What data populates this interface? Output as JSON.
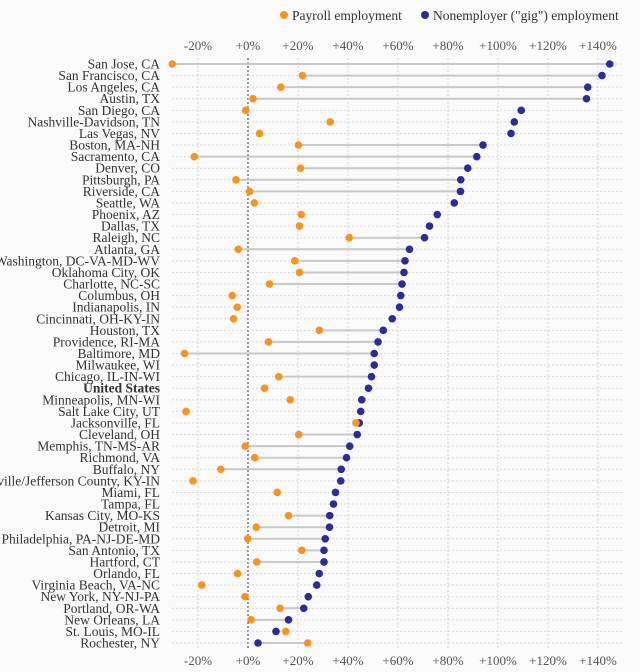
{
  "chart_data": {
    "type": "dot",
    "title": "",
    "xlabel": "",
    "ylabel": "",
    "xlim": [
      -30,
      150
    ],
    "x_ticks": [
      -20,
      0,
      20,
      40,
      60,
      80,
      100,
      120,
      140
    ],
    "x_tick_labels": [
      "-20%",
      "+0%",
      "+20%",
      "+40%",
      "+60%",
      "+80%",
      "+100%",
      "+120%",
      "+140%"
    ],
    "grid": true,
    "legend_position": "top-right",
    "series": [
      {
        "name": "Payroll employment",
        "color": "#f7931e"
      },
      {
        "name": "Nonemployer (\"gig\") employment",
        "color": "#2b2b9a"
      }
    ],
    "rows": [
      {
        "label": "San Jose, CA",
        "payroll": -30.3,
        "gig": 144.7,
        "connector": true
      },
      {
        "label": "San Francisco, CA",
        "payroll": 21.8,
        "gig": 141.6,
        "connector": true
      },
      {
        "label": "Los Angeles, CA",
        "payroll": 13.1,
        "gig": 135.9,
        "connector": true
      },
      {
        "label": "Austin, TX",
        "payroll": 2.0,
        "gig": 135.4,
        "connector": true
      },
      {
        "label": "San Diego, CA",
        "payroll": -0.9,
        "gig": 109.3,
        "connector": false
      },
      {
        "label": "Nashville-Davidson, TN",
        "payroll": 32.9,
        "gig": 106.5,
        "connector": false
      },
      {
        "label": "Las Vegas, NV",
        "payroll": 4.6,
        "gig": 105.2,
        "connector": false
      },
      {
        "label": "Boston, MA-NH",
        "payroll": 20.2,
        "gig": 94.0,
        "connector": true
      },
      {
        "label": "Sacramento, CA",
        "payroll": -21.5,
        "gig": 91.5,
        "connector": true
      },
      {
        "label": "Denver, CO",
        "payroll": 21.0,
        "gig": 87.9,
        "connector": true
      },
      {
        "label": "Pittsburgh, PA",
        "payroll": -4.8,
        "gig": 85.1,
        "connector": true
      },
      {
        "label": "Riverside, CA",
        "payroll": 0.6,
        "gig": 85.0,
        "connector": true
      },
      {
        "label": "Seattle, WA",
        "payroll": 2.5,
        "gig": 82.5,
        "connector": false
      },
      {
        "label": "Phoenix, AZ",
        "payroll": 21.3,
        "gig": 75.7,
        "connector": false
      },
      {
        "label": "Dallas, TX",
        "payroll": 20.6,
        "gig": 72.6,
        "connector": false
      },
      {
        "label": "Raleigh, NC",
        "payroll": 40.5,
        "gig": 70.6,
        "connector": true
      },
      {
        "label": "Atlanta, GA",
        "payroll": -3.9,
        "gig": 64.6,
        "connector": true
      },
      {
        "label": "Washington, DC-VA-MD-WV",
        "payroll": 18.7,
        "gig": 62.8,
        "connector": true
      },
      {
        "label": "Oklahoma City, OK",
        "payroll": 20.6,
        "gig": 62.4,
        "connector": true
      },
      {
        "label": "Charlotte, NC-SC",
        "payroll": 8.6,
        "gig": 61.6,
        "connector": true
      },
      {
        "label": "Columbus, OH",
        "payroll": -6.3,
        "gig": 61.1,
        "connector": false
      },
      {
        "label": "Indianapolis, IN",
        "payroll": -4.3,
        "gig": 60.6,
        "connector": false
      },
      {
        "label": "Cincinnati, OH-KY-IN",
        "payroll": -5.8,
        "gig": 57.7,
        "connector": false
      },
      {
        "label": "Houston, TX",
        "payroll": 28.5,
        "gig": 54.1,
        "connector": true
      },
      {
        "label": "Providence, RI-MA",
        "payroll": 8.2,
        "gig": 52.0,
        "connector": true
      },
      {
        "label": "Baltimore, MD",
        "payroll": -25.4,
        "gig": 50.5,
        "connector": true
      },
      {
        "label": "Milwaukee, WI",
        "payroll": null,
        "gig": 50.5,
        "connector": false
      },
      {
        "label": "Chicago, IL-IN-WI",
        "payroll": 12.3,
        "gig": 49.4,
        "connector": true
      },
      {
        "label": "United States",
        "payroll": 6.6,
        "gig": 48.2,
        "connector": false,
        "bold": true
      },
      {
        "label": "Minneapolis, MN-WI",
        "payroll": 16.9,
        "gig": 45.5,
        "connector": false
      },
      {
        "label": "Salt Lake City, UT",
        "payroll": -24.8,
        "gig": 45.1,
        "connector": false
      },
      {
        "label": "Jacksonville, FL",
        "payroll": 43.2,
        "gig": 44.5,
        "connector": false
      },
      {
        "label": "Cleveland, OH",
        "payroll": 20.3,
        "gig": 43.7,
        "connector": true
      },
      {
        "label": "Memphis, TN-MS-AR",
        "payroll": -1.1,
        "gig": 40.7,
        "connector": true
      },
      {
        "label": "Richmond, VA",
        "payroll": 2.7,
        "gig": 39.4,
        "connector": true
      },
      {
        "label": "Buffalo, NY",
        "payroll": -10.9,
        "gig": 37.3,
        "connector": true
      },
      {
        "label": "Louisville/Jefferson County, KY-IN",
        "payroll": -22.0,
        "gig": 37.1,
        "connector": false
      },
      {
        "label": "Miami, FL",
        "payroll": 11.7,
        "gig": 35.0,
        "connector": false
      },
      {
        "label": "Tampa, FL",
        "payroll": null,
        "gig": 34.2,
        "connector": false
      },
      {
        "label": "Kansas City, MO-KS",
        "payroll": 16.2,
        "gig": 32.7,
        "connector": true
      },
      {
        "label": "Detroit, MI",
        "payroll": 3.3,
        "gig": 32.6,
        "connector": true
      },
      {
        "label": "Philadelphia, PA-NJ-DE-MD",
        "payroll": -0.1,
        "gig": 30.9,
        "connector": true
      },
      {
        "label": "San Antonio, TX",
        "payroll": 21.5,
        "gig": 30.4,
        "connector": true
      },
      {
        "label": "Hartford, CT",
        "payroll": 3.5,
        "gig": 30.4,
        "connector": true
      },
      {
        "label": "Orlando, FL",
        "payroll": -4.2,
        "gig": 28.5,
        "connector": false
      },
      {
        "label": "Virginia Beach, VA-NC",
        "payroll": -18.5,
        "gig": 27.5,
        "connector": false
      },
      {
        "label": "New York, NY-NJ-PA",
        "payroll": -1.2,
        "gig": 24.1,
        "connector": false
      },
      {
        "label": "Portland, OR-WA",
        "payroll": 12.8,
        "gig": 22.3,
        "connector": true
      },
      {
        "label": "New Orleans, LA",
        "payroll": 1.2,
        "gig": 16.2,
        "connector": true
      },
      {
        "label": "St. Louis, MO-IL",
        "payroll": 15.1,
        "gig": 11.2,
        "connector": false
      },
      {
        "label": "Rochester, NY",
        "payroll": 23.9,
        "gig": 4.0,
        "connector": true
      }
    ]
  }
}
